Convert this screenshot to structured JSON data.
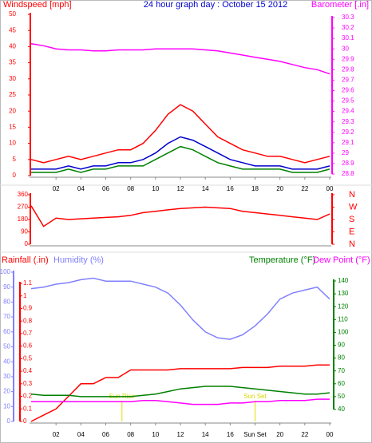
{
  "chart_data": [
    {
      "type": "line",
      "title": "24 hour graph day : October 15 2012",
      "ylabel": "Windspeed [mph]",
      "y2label": "Barometer [.in]",
      "x": [
        0,
        1,
        2,
        3,
        4,
        5,
        6,
        7,
        8,
        9,
        10,
        11,
        12,
        13,
        14,
        15,
        16,
        17,
        18,
        19,
        20,
        21,
        22,
        23,
        24
      ],
      "xlim": [
        0,
        24
      ],
      "xticks": [
        {
          "value": 2,
          "label": "02"
        },
        {
          "value": 4,
          "label": "04"
        },
        {
          "value": 6,
          "label": "06"
        },
        {
          "value": 8,
          "label": "08"
        },
        10,
        12,
        14,
        16,
        18,
        20,
        22,
        {
          "value": 24,
          "label": "00"
        }
      ],
      "ylim": [
        0,
        50
      ],
      "yticks": [
        0,
        5,
        10,
        15,
        20,
        25,
        30,
        35,
        40,
        45,
        50
      ],
      "ycolor": "#ff0000",
      "y2lim": [
        28.8,
        30.3
      ],
      "y2ticks": [
        28.8,
        28.9,
        29,
        29.1,
        29.2,
        29.3,
        29.4,
        29.5,
        29.6,
        29.7,
        29.8,
        29.9,
        30,
        30.1,
        30.2,
        30.3
      ],
      "y2color": "#ff00ff",
      "series": [
        {
          "color": "#ff0000",
          "values": [
            5,
            4,
            5,
            6,
            5,
            6,
            7,
            8,
            8,
            10,
            14,
            19,
            22,
            20,
            16,
            12,
            10,
            8,
            7,
            6,
            6,
            5,
            4,
            5,
            6
          ]
        },
        {
          "color": "#0000cc",
          "values": [
            2,
            2,
            2,
            3,
            2,
            3,
            3,
            4,
            4,
            5,
            7,
            10,
            12,
            11,
            9,
            7,
            5,
            4,
            3,
            3,
            3,
            2,
            2,
            2,
            3
          ]
        },
        {
          "color": "#008000",
          "values": [
            1,
            1,
            1,
            2,
            1,
            2,
            2,
            3,
            3,
            3,
            5,
            7,
            9,
            8,
            6,
            4,
            3,
            2,
            2,
            2,
            2,
            1,
            1,
            1,
            2
          ]
        },
        {
          "color": "#ff00ff",
          "axis": "y2",
          "values": [
            30.05,
            30.03,
            30.0,
            29.99,
            29.99,
            29.98,
            29.98,
            29.99,
            29.99,
            29.99,
            30.0,
            30.0,
            30.0,
            30.0,
            29.99,
            29.98,
            29.96,
            29.94,
            29.92,
            29.9,
            29.88,
            29.85,
            29.82,
            29.8,
            29.76
          ]
        }
      ]
    },
    {
      "type": "line",
      "x": [
        0,
        1,
        2,
        3,
        4,
        5,
        6,
        7,
        8,
        9,
        10,
        11,
        12,
        13,
        14,
        15,
        16,
        17,
        18,
        19,
        20,
        21,
        22,
        23,
        24
      ],
      "xlim": [
        0,
        24
      ],
      "ylim": [
        0,
        360
      ],
      "yticks": [
        0,
        90,
        180,
        270,
        360
      ],
      "ycolor": "#ff0000",
      "y2lim": [
        0,
        360
      ],
      "y2ticks": [
        {
          "value": 360,
          "label": "N"
        },
        {
          "value": 270,
          "label": "W"
        },
        {
          "value": 180,
          "label": "S"
        },
        {
          "value": 90,
          "label": "E"
        },
        {
          "value": 0,
          "label": "N"
        }
      ],
      "y2color": "#ff0000",
      "series": [
        {
          "color": "#ff0000",
          "values": [
            280,
            130,
            190,
            180,
            185,
            190,
            195,
            200,
            210,
            230,
            240,
            250,
            260,
            265,
            270,
            265,
            260,
            240,
            230,
            220,
            210,
            200,
            190,
            180,
            220
          ]
        }
      ]
    },
    {
      "type": "line",
      "ylabel": "Rainfall (.in)",
      "y3label": "Humidity (%)",
      "y2label": "Temperature (°F)",
      "y4label": "Dew Point (°F)",
      "x": [
        0,
        1,
        2,
        3,
        4,
        5,
        6,
        7,
        8,
        9,
        10,
        11,
        12,
        13,
        14,
        15,
        16,
        17,
        18,
        19,
        20,
        21,
        22,
        23,
        24
      ],
      "xlim": [
        0,
        24
      ],
      "xticks": [
        {
          "value": 2,
          "label": "02"
        },
        {
          "value": 4,
          "label": "04"
        },
        {
          "value": 6,
          "label": "06"
        },
        {
          "value": 8,
          "label": "08"
        },
        10,
        12,
        14,
        16,
        {
          "value": 18,
          "label": "Sun Set"
        },
        20,
        22,
        {
          "value": 24,
          "label": "00"
        }
      ],
      "ylim": [
        0,
        1.1
      ],
      "yticks": [
        0,
        0.1,
        0.2,
        0.3,
        0.4,
        0.5,
        0.6,
        0.7,
        0.8,
        0.9,
        1,
        1.1
      ],
      "ycolor": "#ff0000",
      "y3lim": [
        0,
        100
      ],
      "y3ticks": [
        0,
        10,
        20,
        30,
        40,
        50,
        60,
        70,
        80,
        90,
        100
      ],
      "y3color": "#8080ff",
      "y2lim": [
        40,
        140
      ],
      "y2ticks": [
        40,
        50,
        60,
        70,
        80,
        90,
        100,
        110,
        120,
        130,
        140
      ],
      "y2color": "#008000",
      "y4color": "#ff00ff",
      "annotations": [
        {
          "text": "Sun Rise",
          "x": 7.3
        },
        {
          "text": "Sun Set",
          "x": 18
        }
      ],
      "series": [
        {
          "color": "#ff0000",
          "axis": "y",
          "values": [
            0,
            0.05,
            0.1,
            0.2,
            0.3,
            0.3,
            0.35,
            0.35,
            0.41,
            0.41,
            0.41,
            0.41,
            0.42,
            0.42,
            0.42,
            0.42,
            0.42,
            0.43,
            0.43,
            0.43,
            0.44,
            0.44,
            0.44,
            0.45,
            0.45
          ]
        },
        {
          "color": "#8080ff",
          "axis": "y3",
          "values": [
            89,
            90,
            92,
            93,
            95,
            96,
            94,
            94,
            94,
            92,
            90,
            86,
            78,
            68,
            60,
            56,
            55,
            58,
            64,
            72,
            82,
            86,
            88,
            90,
            82
          ]
        },
        {
          "color": "#008000",
          "axis": "y2",
          "values": [
            52,
            51,
            51,
            51,
            50,
            50,
            50,
            50,
            50,
            51,
            52,
            54,
            56,
            57,
            58,
            58,
            58,
            57,
            56,
            55,
            54,
            53,
            52,
            52,
            53
          ]
        },
        {
          "color": "#ff00ff",
          "axis": "y2",
          "values": [
            46,
            46,
            46,
            46,
            46,
            46,
            46,
            46,
            46,
            47,
            47,
            46,
            45,
            44,
            44,
            44,
            45,
            45,
            46,
            46,
            47,
            47,
            47,
            48,
            48
          ]
        }
      ]
    }
  ]
}
